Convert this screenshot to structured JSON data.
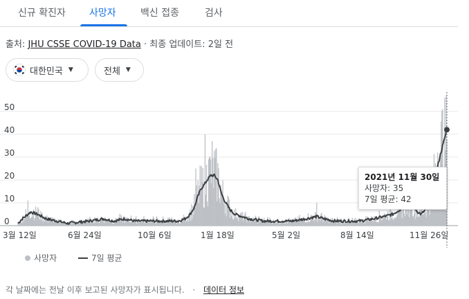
{
  "tabs": [
    {
      "label": "신규 확진자",
      "active": false
    },
    {
      "label": "사망자",
      "active": true
    },
    {
      "label": "백신 접종",
      "active": false
    },
    {
      "label": "검사",
      "active": false
    }
  ],
  "source": {
    "prefix": "출처:",
    "link_text": "JHU CSSE COVID-19 Data",
    "separator": "·",
    "updated": "최종 업데이트: 2일 전"
  },
  "filters": {
    "region": {
      "label": "대한민국",
      "icon": "korea-flag-icon"
    },
    "scope": {
      "label": "전체"
    }
  },
  "tooltip": {
    "date": "2021년 11월 30일",
    "deaths_label": "사망자: 35",
    "avg_label": "7일 평균: 42"
  },
  "legend": {
    "deaths": "사망자",
    "avg": "7일 평균"
  },
  "footer": {
    "note": "각 날짜에는 전날 이후 보고된 사망자가 표시됩니다.",
    "separator": "·",
    "info_link": "데이터 정보"
  },
  "colors": {
    "accent": "#1a73e8",
    "bars": "#bdc1c6",
    "avg_line": "#3c4043"
  },
  "chart_data": {
    "type": "bar",
    "title": "",
    "xlabel": "",
    "ylabel": "",
    "ylim": [
      0,
      60
    ],
    "yticks": [
      0,
      10,
      20,
      30,
      40,
      50
    ],
    "xtick_labels": [
      "3월 12일",
      "6월 24일",
      "10월 6일",
      "1월 18일",
      "5월 2일",
      "8월 14일",
      "11월 26일"
    ],
    "grid": true,
    "legend_position": "bottom-left",
    "series": [
      {
        "name": "사망자",
        "type": "bar",
        "description_points": [
          {
            "period": "2020-03",
            "approx": 5
          },
          {
            "period": "2020-04",
            "approx": 7
          },
          {
            "period": "2020-05 to 2020-07",
            "approx": 1
          },
          {
            "period": "2020-08 to 2020-11",
            "approx": 3
          },
          {
            "period": "2020-12",
            "approx": 20
          },
          {
            "period": "2021-01 peak",
            "approx": 40
          },
          {
            "period": "2021-02",
            "approx": 8
          },
          {
            "period": "2021-03 to 2021-08",
            "approx": 3
          },
          {
            "period": "2021-09 to 2021-10",
            "approx": 8
          },
          {
            "period": "2021-11",
            "approx": 56
          }
        ]
      },
      {
        "name": "7일 평균",
        "type": "line",
        "keypoints": [
          [
            0,
            1
          ],
          [
            6,
            3
          ],
          [
            18,
            6
          ],
          [
            27,
            5
          ],
          [
            40,
            3
          ],
          [
            55,
            2
          ],
          [
            70,
            1
          ],
          [
            85,
            1.5
          ],
          [
            100,
            2
          ],
          [
            120,
            3
          ],
          [
            135,
            2
          ],
          [
            150,
            3
          ],
          [
            165,
            2
          ],
          [
            180,
            2
          ],
          [
            195,
            2
          ],
          [
            205,
            2
          ],
          [
            215,
            2
          ],
          [
            225,
            2
          ],
          [
            235,
            3
          ],
          [
            242,
            5
          ],
          [
            248,
            8
          ],
          [
            252,
            12
          ],
          [
            257,
            16
          ],
          [
            262,
            18
          ],
          [
            266,
            20
          ],
          [
            271,
            22
          ],
          [
            276,
            22
          ],
          [
            281,
            20
          ],
          [
            286,
            14
          ],
          [
            292,
            10
          ],
          [
            298,
            7
          ],
          [
            305,
            5
          ],
          [
            315,
            4
          ],
          [
            325,
            3
          ],
          [
            345,
            2
          ],
          [
            365,
            2
          ],
          [
            385,
            2
          ],
          [
            405,
            3
          ],
          [
            420,
            4
          ],
          [
            430,
            3
          ],
          [
            445,
            2
          ],
          [
            460,
            2
          ],
          [
            480,
            2
          ],
          [
            500,
            3
          ],
          [
            515,
            4
          ],
          [
            527,
            5
          ],
          [
            537,
            7
          ],
          [
            545,
            9
          ],
          [
            552,
            10
          ],
          [
            557,
            8
          ],
          [
            562,
            6
          ],
          [
            567,
            5
          ],
          [
            570,
            6
          ],
          [
            576,
            8
          ],
          [
            580,
            12
          ],
          [
            584,
            17
          ],
          [
            588,
            23
          ],
          [
            593,
            30
          ],
          [
            598,
            36
          ],
          [
            603,
            42
          ]
        ]
      }
    ],
    "highlight": {
      "date": "2021년 11월 30일",
      "deaths": 35,
      "avg": 42
    }
  }
}
